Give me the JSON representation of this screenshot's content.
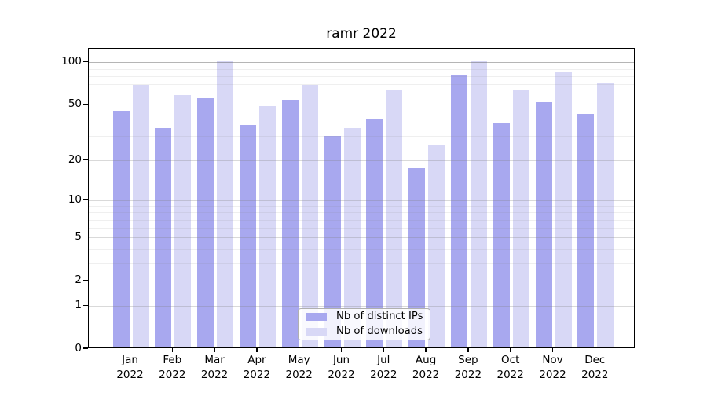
{
  "title": "ramr 2022",
  "legend": {
    "items": [
      {
        "label": "Nb of distinct IPs",
        "color": "#a8a8ef"
      },
      {
        "label": "Nb of downloads",
        "color": "#d8d8f6"
      }
    ]
  },
  "colors": {
    "bar_distinct_ips": "#a8a8ef",
    "bar_downloads": "#d8d8f6",
    "grid_major": "rgba(128,128,128,0.30)",
    "grid_minor": "rgba(128,128,128,0.13)",
    "grid_top_100": "rgba(90,90,90,0.45)",
    "frame": "#000000"
  },
  "y_axis": {
    "tick_values": [
      100,
      50,
      20,
      10,
      5,
      2,
      1,
      0
    ],
    "tick_labels": [
      "100",
      "50",
      "20",
      "10",
      "5",
      "2",
      "1",
      "0"
    ]
  },
  "x_axis": {
    "months": [
      "Jan",
      "Feb",
      "Mar",
      "Apr",
      "May",
      "Jun",
      "Jul",
      "Aug",
      "Sep",
      "Oct",
      "Nov",
      "Dec"
    ],
    "year": "2022"
  },
  "chart_data": {
    "type": "bar",
    "title": "ramr 2022",
    "xlabel": "",
    "ylabel": "",
    "categories": [
      "Jan 2022",
      "Feb 2022",
      "Mar 2022",
      "Apr 2022",
      "May 2022",
      "Jun 2022",
      "Jul 2022",
      "Aug 2022",
      "Sep 2022",
      "Oct 2022",
      "Nov 2022",
      "Dec 2022"
    ],
    "series": [
      {
        "name": "Nb of distinct IPs",
        "color": "#a8a8ef",
        "values": [
          44,
          33,
          54,
          35,
          53,
          29,
          39,
          17,
          80,
          36,
          51,
          42
        ]
      },
      {
        "name": "Nb of downloads",
        "color": "#d8d8f6",
        "values": [
          68,
          57,
          100,
          48,
          68,
          33,
          63,
          25,
          100,
          63,
          84,
          70
        ]
      }
    ],
    "yscale": "log10(1+y)",
    "ylim": [
      0,
      125
    ],
    "yticks": [
      0,
      1,
      2,
      5,
      10,
      20,
      50,
      100
    ],
    "minor_gridlines": [
      3,
      4,
      6,
      7,
      8,
      9,
      30,
      40,
      60,
      70,
      80,
      90
    ],
    "grid": true,
    "legend_position": "lower center"
  }
}
